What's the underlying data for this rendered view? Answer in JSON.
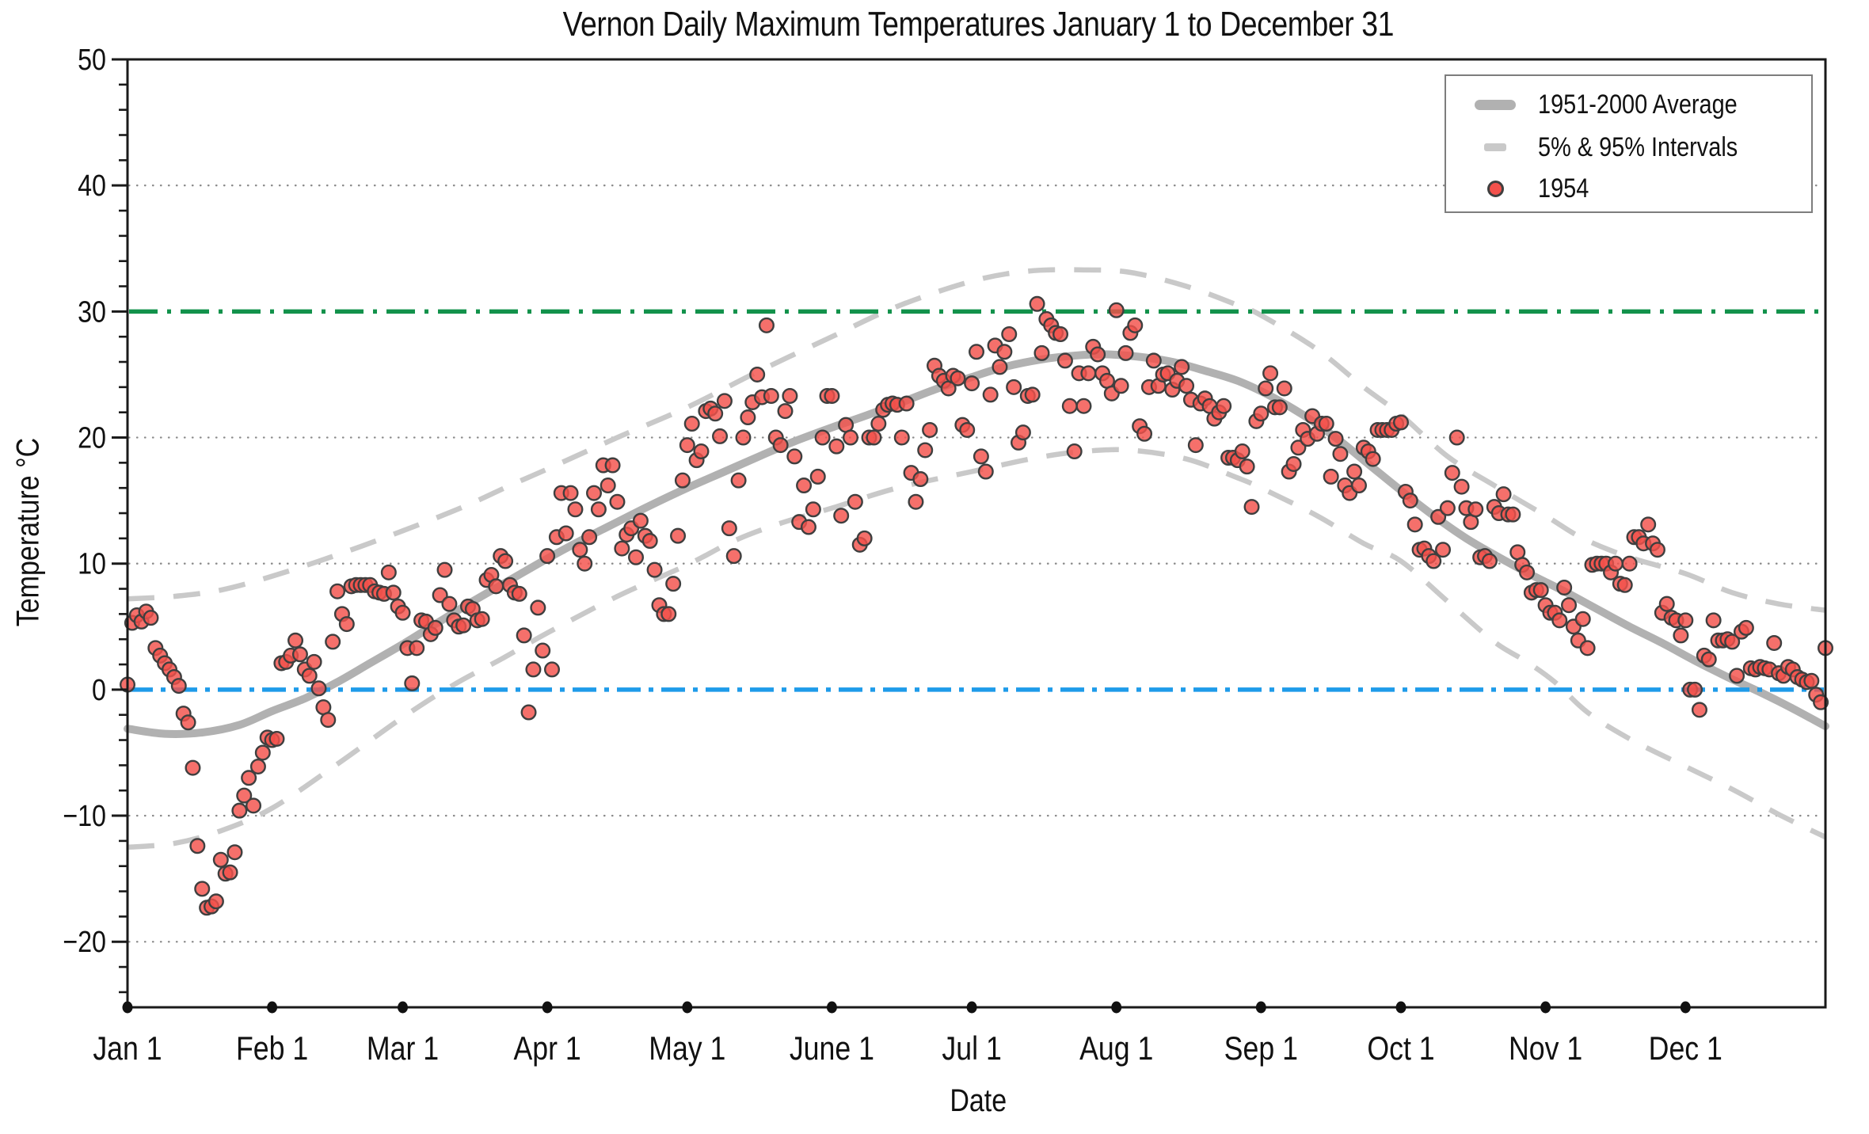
{
  "title": "Vernon Daily Maximum Temperatures January 1 to December 31",
  "axes": {
    "x_label": "Date",
    "y_label": "Temperature °C"
  },
  "legend": {
    "items": [
      {
        "label": "1951-2000 Average",
        "swatch": "thick-gray-line"
      },
      {
        "label": "5% & 95% Intervals",
        "swatch": "gray-dash"
      },
      {
        "label": "1954",
        "swatch": "red-dot"
      }
    ]
  },
  "colors": {
    "average_line": "#b1b1b1",
    "interval_line": "#c9c9c9",
    "scatter_fill": "#f3504b",
    "scatter_edge": "#3f3f3f",
    "green_reference": "#12924b",
    "blue_reference": "#1e9be9",
    "grid": "#8a8a8a",
    "axis": "#1a1a1a",
    "text": "#111111"
  },
  "chart_data": {
    "type": "scatter",
    "title": "Vernon Daily Maximum Temperatures January 1 to December 31",
    "xlabel": "Date",
    "ylabel": "Temperature °C",
    "x_unit": "day of year (0 = Jan 1)",
    "xlim": [
      0,
      364
    ],
    "ylim": [
      -25.2,
      50
    ],
    "grid_y_dotted": [
      -20,
      -10,
      10,
      20,
      40
    ],
    "y_ticks_major": [
      -20,
      -10,
      0,
      10,
      20,
      30,
      40,
      50
    ],
    "y_tick_labels": [
      "−20",
      "−10",
      "0",
      "10",
      "20",
      "30",
      "40",
      "50"
    ],
    "y_minor_step": 2,
    "y_minor_range": [
      -24,
      48
    ],
    "reference_lines": [
      {
        "name": "30C-hot-line",
        "y": 30,
        "color": "#12924b",
        "style": "dash-dot"
      },
      {
        "name": "0C-freeze-line",
        "y": 0,
        "color": "#1e9be9",
        "style": "dash-dot"
      }
    ],
    "x_ticks": [
      {
        "day": 0,
        "label": "Jan 1"
      },
      {
        "day": 31,
        "label": "Feb 1"
      },
      {
        "day": 59,
        "label": "Mar 1"
      },
      {
        "day": 90,
        "label": "Apr 1"
      },
      {
        "day": 120,
        "label": "May 1"
      },
      {
        "day": 151,
        "label": "June 1"
      },
      {
        "day": 181,
        "label": "Jul 1"
      },
      {
        "day": 212,
        "label": "Aug 1"
      },
      {
        "day": 243,
        "label": "Sep 1"
      },
      {
        "day": 273,
        "label": "Oct 1"
      },
      {
        "day": 304,
        "label": "Nov 1"
      },
      {
        "day": 334,
        "label": "Dec 1"
      }
    ],
    "series": [
      {
        "name": "1951-2000 Average",
        "kind": "smooth-line",
        "points": [
          [
            0,
            -3.1
          ],
          [
            8,
            -3.5
          ],
          [
            16,
            -3.4
          ],
          [
            24,
            -2.8
          ],
          [
            31,
            -1.7
          ],
          [
            38,
            -0.7
          ],
          [
            45,
            0.6
          ],
          [
            52,
            2.1
          ],
          [
            59,
            3.6
          ],
          [
            66,
            5.2
          ],
          [
            74,
            7.0
          ],
          [
            82,
            8.7
          ],
          [
            90,
            10.4
          ],
          [
            97,
            11.8
          ],
          [
            105,
            13.3
          ],
          [
            112,
            14.6
          ],
          [
            120,
            16.0
          ],
          [
            128,
            17.3
          ],
          [
            136,
            18.6
          ],
          [
            143,
            19.7
          ],
          [
            151,
            20.8
          ],
          [
            158,
            21.7
          ],
          [
            166,
            22.8
          ],
          [
            173,
            23.8
          ],
          [
            181,
            24.8
          ],
          [
            188,
            25.6
          ],
          [
            196,
            26.2
          ],
          [
            203,
            26.5
          ],
          [
            210,
            26.6
          ],
          [
            217,
            26.4
          ],
          [
            224,
            26.0
          ],
          [
            231,
            25.3
          ],
          [
            238,
            24.5
          ],
          [
            245,
            23.3
          ],
          [
            252,
            21.8
          ],
          [
            259,
            20.0
          ],
          [
            266,
            17.9
          ],
          [
            273,
            15.8
          ],
          [
            280,
            13.8
          ],
          [
            287,
            12.0
          ],
          [
            294,
            10.5
          ],
          [
            301,
            9.1
          ],
          [
            308,
            7.8
          ],
          [
            315,
            6.4
          ],
          [
            322,
            5.0
          ],
          [
            329,
            3.7
          ],
          [
            336,
            2.3
          ],
          [
            343,
            1.0
          ],
          [
            350,
            -0.2
          ],
          [
            357,
            -1.5
          ],
          [
            364,
            -2.9
          ]
        ]
      },
      {
        "name": "95% Interval",
        "kind": "smooth-dashed",
        "points": [
          [
            0,
            7.2
          ],
          [
            10,
            7.4
          ],
          [
            20,
            7.9
          ],
          [
            31,
            9.0
          ],
          [
            45,
            10.7
          ],
          [
            59,
            12.6
          ],
          [
            72,
            14.5
          ],
          [
            82,
            16.2
          ],
          [
            90,
            17.5
          ],
          [
            105,
            20.0
          ],
          [
            120,
            22.4
          ],
          [
            135,
            25.2
          ],
          [
            151,
            28.0
          ],
          [
            165,
            30.4
          ],
          [
            181,
            32.4
          ],
          [
            193,
            33.2
          ],
          [
            205,
            33.3
          ],
          [
            215,
            33.1
          ],
          [
            227,
            32.0
          ],
          [
            238,
            30.5
          ],
          [
            243,
            29.7
          ],
          [
            255,
            27.0
          ],
          [
            265,
            24.0
          ],
          [
            273,
            21.8
          ],
          [
            283,
            18.5
          ],
          [
            293,
            16.2
          ],
          [
            304,
            13.8
          ],
          [
            312,
            12.0
          ],
          [
            322,
            10.5
          ],
          [
            334,
            9.2
          ],
          [
            344,
            7.7
          ],
          [
            354,
            6.8
          ],
          [
            364,
            6.3
          ]
        ]
      },
      {
        "name": "5% Interval",
        "kind": "smooth-dashed",
        "points": [
          [
            0,
            -12.5
          ],
          [
            10,
            -12.2
          ],
          [
            20,
            -11.2
          ],
          [
            31,
            -9.4
          ],
          [
            45,
            -5.9
          ],
          [
            59,
            -2.2
          ],
          [
            70,
            0.4
          ],
          [
            80,
            2.4
          ],
          [
            90,
            4.5
          ],
          [
            105,
            7.4
          ],
          [
            120,
            9.9
          ],
          [
            130,
            11.8
          ],
          [
            140,
            13.2
          ],
          [
            151,
            14.4
          ],
          [
            165,
            16.0
          ],
          [
            181,
            17.3
          ],
          [
            195,
            18.4
          ],
          [
            205,
            18.9
          ],
          [
            215,
            19.0
          ],
          [
            227,
            18.3
          ],
          [
            238,
            16.8
          ],
          [
            243,
            16.0
          ],
          [
            255,
            13.8
          ],
          [
            265,
            11.6
          ],
          [
            273,
            10.2
          ],
          [
            283,
            7.0
          ],
          [
            293,
            3.8
          ],
          [
            300,
            2.2
          ],
          [
            306,
            0.6
          ],
          [
            313,
            -1.8
          ],
          [
            322,
            -3.9
          ],
          [
            334,
            -6.1
          ],
          [
            344,
            -7.9
          ],
          [
            354,
            -9.9
          ],
          [
            364,
            -11.7
          ]
        ]
      },
      {
        "name": "1954",
        "kind": "scatter-daily",
        "start_day": 0,
        "values": [
          0.4,
          5.3,
          5.9,
          5.4,
          6.2,
          5.7,
          3.3,
          2.7,
          2.1,
          1.6,
          1.0,
          0.3,
          -1.9,
          -2.6,
          -6.2,
          -12.4,
          -15.8,
          -17.3,
          -17.2,
          -16.8,
          -13.5,
          -14.6,
          -14.5,
          -12.9,
          -9.6,
          -8.4,
          -7.0,
          -9.2,
          -6.1,
          -5.0,
          -3.8,
          -4.0,
          -3.9,
          2.1,
          2.2,
          2.7,
          3.9,
          2.8,
          1.6,
          1.1,
          2.2,
          0.1,
          -1.4,
          -2.4,
          3.8,
          7.8,
          6.0,
          5.2,
          8.2,
          8.3,
          8.3,
          8.3,
          8.3,
          7.8,
          7.7,
          7.6,
          9.3,
          7.7,
          6.6,
          6.1,
          3.3,
          0.5,
          3.3,
          5.5,
          5.4,
          4.4,
          4.9,
          7.5,
          9.5,
          6.8,
          5.5,
          5.0,
          5.1,
          6.6,
          6.4,
          5.5,
          5.6,
          8.7,
          9.1,
          8.2,
          10.6,
          10.2,
          8.3,
          7.7,
          7.6,
          4.3,
          -1.8,
          1.6,
          6.5,
          3.1,
          10.6,
          1.6,
          12.1,
          15.6,
          12.4,
          15.6,
          14.3,
          11.1,
          10.0,
          12.1,
          15.6,
          14.3,
          17.8,
          16.2,
          17.8,
          14.9,
          11.2,
          12.3,
          12.8,
          10.5,
          13.4,
          12.2,
          11.8,
          9.5,
          6.7,
          6.0,
          6.0,
          8.4,
          12.2,
          16.6,
          19.4,
          21.1,
          18.2,
          18.9,
          22.1,
          22.3,
          21.9,
          20.1,
          22.9,
          12.8,
          10.6,
          16.6,
          20.0,
          21.6,
          22.8,
          25.0,
          23.2,
          28.9,
          23.3,
          20.0,
          19.4,
          22.1,
          23.3,
          18.5,
          13.3,
          16.2,
          12.9,
          14.3,
          16.9,
          20.0,
          23.3,
          23.3,
          19.3,
          13.8,
          21.0,
          20.0,
          14.9,
          11.5,
          12.0,
          20.0,
          20.0,
          21.1,
          22.2,
          22.6,
          22.7,
          22.6,
          20.0,
          22.7,
          17.2,
          14.9,
          16.7,
          19.0,
          20.6,
          25.7,
          24.9,
          24.5,
          23.9,
          24.9,
          24.7,
          21.0,
          20.6,
          24.3,
          26.8,
          18.5,
          17.3,
          23.4,
          27.3,
          25.6,
          26.8,
          28.2,
          24.0,
          19.6,
          20.4,
          23.3,
          23.4,
          30.6,
          26.7,
          29.4,
          28.9,
          28.3,
          28.2,
          26.1,
          22.5,
          18.9,
          25.1,
          22.5,
          25.1,
          27.2,
          26.6,
          25.1,
          24.5,
          23.5,
          30.1,
          24.1,
          26.7,
          28.3,
          28.9,
          20.9,
          20.3,
          24.0,
          26.1,
          24.1,
          25.0,
          25.1,
          23.8,
          24.5,
          25.6,
          24.1,
          23.0,
          19.4,
          22.7,
          23.1,
          22.5,
          21.5,
          22.0,
          22.5,
          18.4,
          18.4,
          18.2,
          18.9,
          17.7,
          14.5,
          21.3,
          21.9,
          23.9,
          25.1,
          22.4,
          22.4,
          23.9,
          17.3,
          17.9,
          19.2,
          20.6,
          19.9,
          21.7,
          20.3,
          21.1,
          21.1,
          16.9,
          19.9,
          18.7,
          16.2,
          15.6,
          17.3,
          16.2,
          19.2,
          18.9,
          18.3,
          20.6,
          20.6,
          20.6,
          20.6,
          21.1,
          21.2,
          15.7,
          15.0,
          13.1,
          11.1,
          11.2,
          10.6,
          10.2,
          13.7,
          11.1,
          14.4,
          17.2,
          20.0,
          16.1,
          14.4,
          13.3,
          14.3,
          10.5,
          10.6,
          10.2,
          14.5,
          14.0,
          15.5,
          13.9,
          13.9,
          10.9,
          9.9,
          9.3,
          7.7,
          7.9,
          7.9,
          6.7,
          6.1,
          6.1,
          5.5,
          8.1,
          6.7,
          5.0,
          3.9,
          5.6,
          3.3,
          9.9,
          10.0,
          10.0,
          10.0,
          9.3,
          10.0,
          8.4,
          8.3,
          10.0,
          12.1,
          12.1,
          11.6,
          13.1,
          11.6,
          11.1,
          6.1,
          6.8,
          5.7,
          5.5,
          4.3,
          5.5,
          0.0,
          0.0,
          -1.6,
          2.7,
          2.4,
          5.5,
          3.9,
          3.9,
          4.0,
          3.8,
          1.1,
          4.6,
          4.9,
          1.7,
          1.6,
          1.8,
          1.7,
          1.6,
          3.7,
          1.3,
          1.1,
          1.8,
          1.6,
          1.0,
          0.8,
          0.6,
          0.7,
          -0.4,
          -1.0,
          3.3
        ]
      }
    ],
    "legend_position": "top-right"
  }
}
